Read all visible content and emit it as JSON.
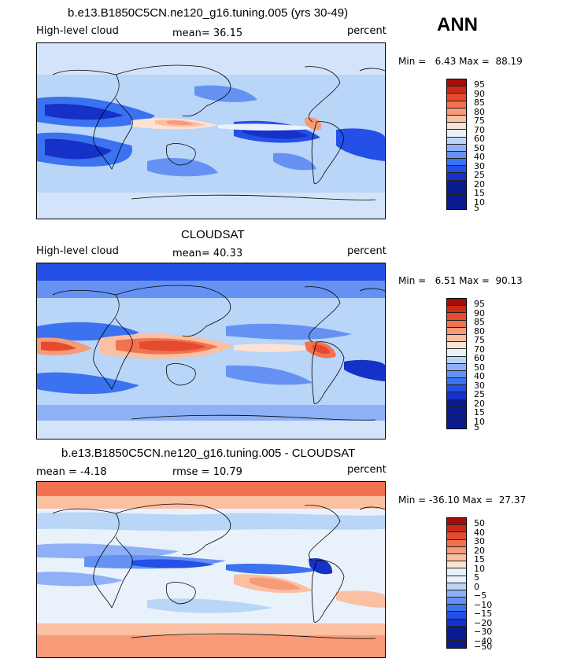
{
  "annual_label": "ANN",
  "colors": {
    "abs_scale": [
      "#0a1a8f",
      "#1531c8",
      "#2450e8",
      "#3a72ef",
      "#6592f2",
      "#8fb0f6",
      "#b9d5f8",
      "#e9f2fb",
      "#fde2d3",
      "#fbbfa2",
      "#f79a78",
      "#f2724f",
      "#e54b2f",
      "#cc2a16",
      "#a30e08"
    ],
    "diff_scale": [
      "#0a1a8f",
      "#1531c8",
      "#2450e8",
      "#3a72ef",
      "#6592f2",
      "#8fb0f6",
      "#b9d5f8",
      "#e9f2fb",
      "#fde2d3",
      "#fbbfa2",
      "#f79a78",
      "#f2724f",
      "#e54b2f",
      "#cc2a16",
      "#a30e08"
    ]
  },
  "panels": [
    {
      "title": "b.e13.B1850C5CN.ne120_g16.tuning.005 (yrs 30-49)",
      "field_label": "High-level cloud",
      "stat_text": "mean=  36.15",
      "units": "percent",
      "minmax": "Min =   6.43 Max =  88.19",
      "legend_labels": [
        "95",
        "90",
        "85",
        "80",
        "75",
        "70",
        "60",
        "50",
        "40",
        "30",
        "25",
        "20",
        "15",
        "10",
        "5"
      ]
    },
    {
      "title": "CLOUDSAT",
      "field_label": "High-level cloud",
      "stat_text": "mean=  40.33",
      "units": "percent",
      "minmax": "Min =   6.51 Max =  90.13",
      "legend_labels": [
        "95",
        "90",
        "85",
        "80",
        "75",
        "70",
        "60",
        "50",
        "40",
        "30",
        "25",
        "20",
        "15",
        "10",
        "5"
      ]
    },
    {
      "title": "b.e13.B1850C5CN.ne120_g16.tuning.005 - CLOUDSAT",
      "field_label": "mean =  -4.18",
      "stat_text": "rmse =  10.79",
      "units": "percent",
      "minmax": "Min = -36.10 Max =  27.37",
      "legend_labels": [
        "50",
        "40",
        "30",
        "20",
        "15",
        "10",
        "5",
        "0",
        "−5",
        "−10",
        "−15",
        "−20",
        "−30",
        "−40",
        "−50"
      ]
    }
  ]
}
